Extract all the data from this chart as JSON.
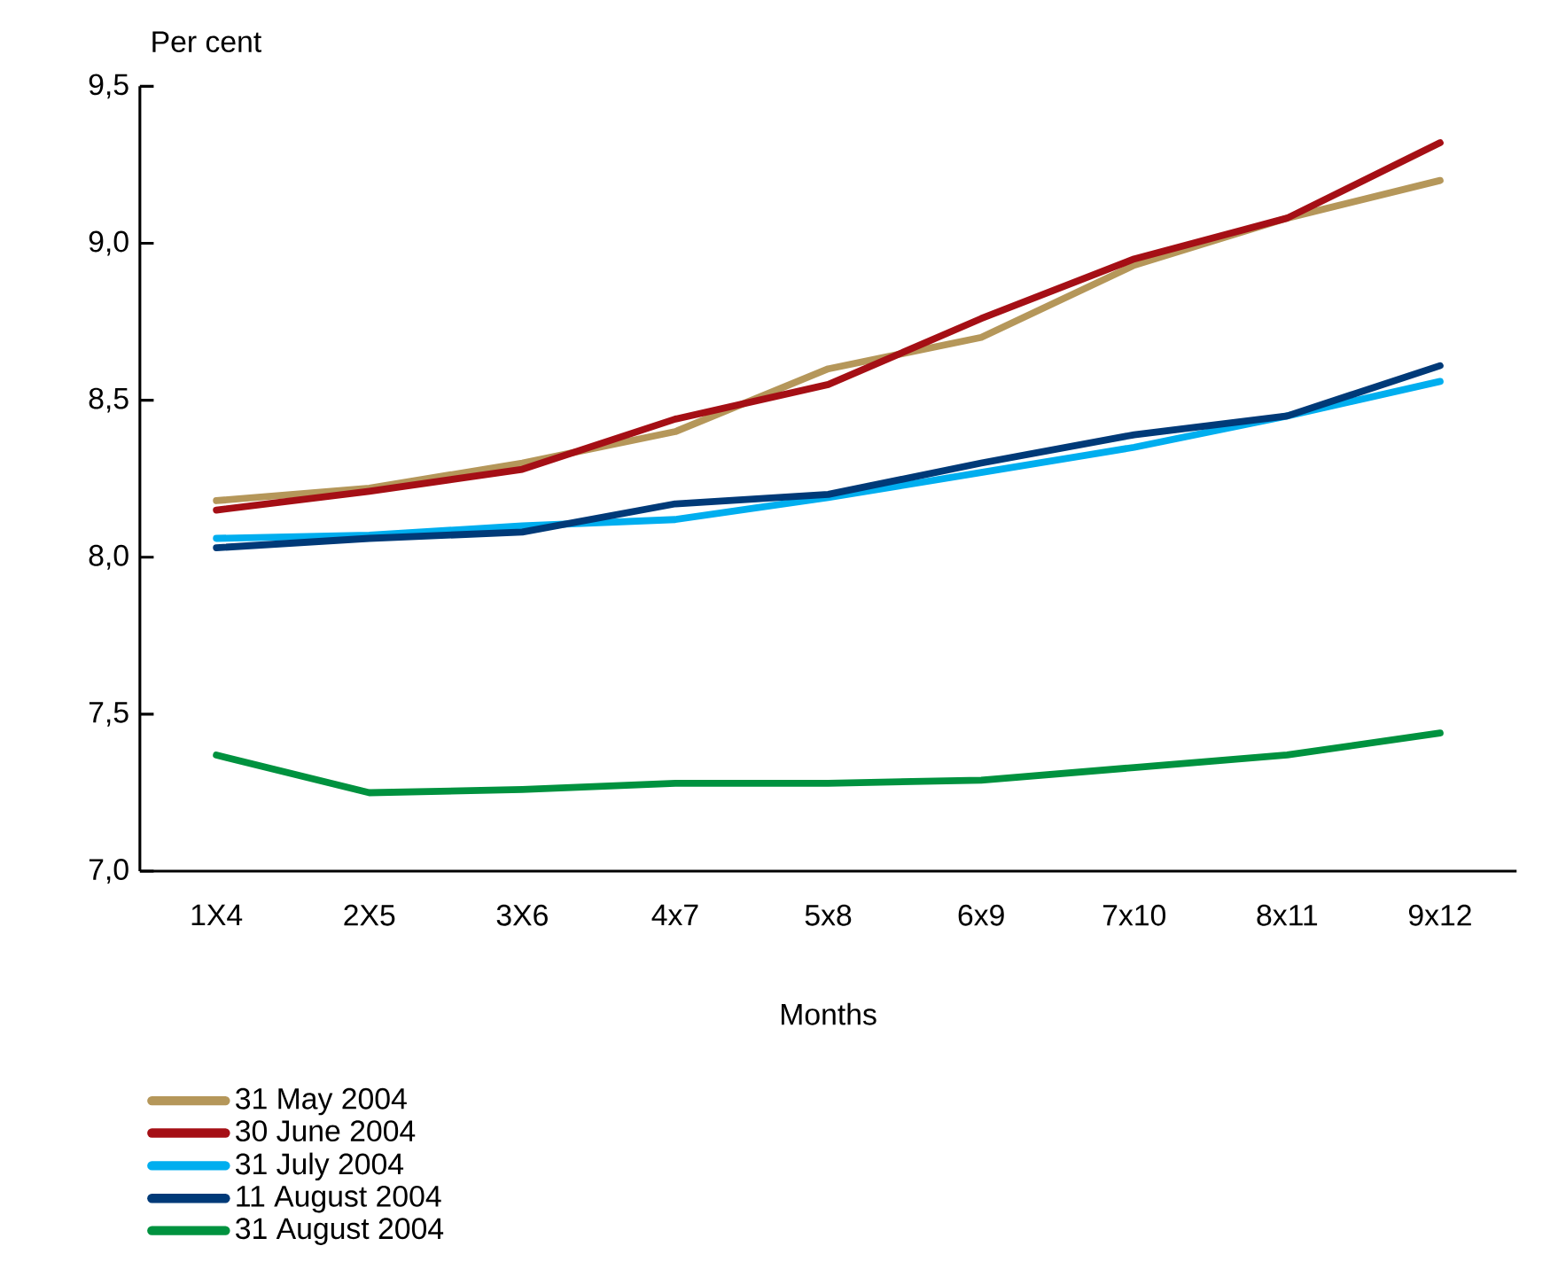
{
  "chart_data": {
    "type": "line",
    "ylabel": "Per cent",
    "xlabel": "Months",
    "categories": [
      "1X4",
      "2X5",
      "3X6",
      "4x7",
      "5x8",
      "6x9",
      "7x10",
      "8x11",
      "9x12"
    ],
    "ylim": [
      7.0,
      9.5
    ],
    "yticks": [
      {
        "value": 7.0,
        "label": "7,0"
      },
      {
        "value": 7.5,
        "label": "7,5"
      },
      {
        "value": 8.0,
        "label": "8,0"
      },
      {
        "value": 8.5,
        "label": "8,5"
      },
      {
        "value": 9.0,
        "label": "9,0"
      },
      {
        "value": 9.5,
        "label": "9,5"
      }
    ],
    "legend": "bottom",
    "marker": "none",
    "line_style": "solid",
    "series": [
      {
        "name": "31 May 2004",
        "color": "#b5975a",
        "values": [
          8.18,
          8.22,
          8.3,
          8.4,
          8.6,
          8.7,
          8.93,
          9.08,
          9.2
        ]
      },
      {
        "name": "30 June 2004",
        "color": "#a50f15",
        "values": [
          8.15,
          8.21,
          8.28,
          8.44,
          8.55,
          8.76,
          8.95,
          9.08,
          9.32
        ]
      },
      {
        "name": "31 July 2004",
        "color": "#00aeef",
        "values": [
          8.06,
          8.07,
          8.1,
          8.12,
          8.19,
          8.27,
          8.35,
          8.45,
          8.56
        ]
      },
      {
        "name": "11 August 2004",
        "color": "#003a78",
        "values": [
          8.03,
          8.06,
          8.08,
          8.17,
          8.2,
          8.3,
          8.39,
          8.45,
          8.61
        ]
      },
      {
        "name": "31 August 2004",
        "color": "#00923f",
        "values": [
          7.37,
          7.25,
          7.26,
          7.28,
          7.28,
          7.29,
          7.33,
          7.37,
          7.44
        ]
      }
    ]
  }
}
